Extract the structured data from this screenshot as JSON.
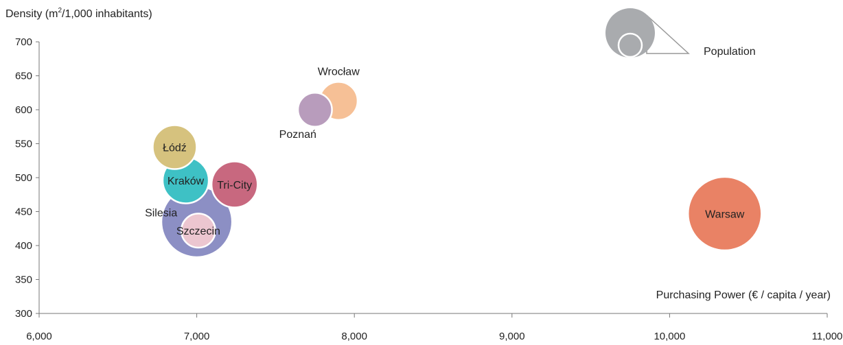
{
  "chart_data": {
    "type": "scatter",
    "subtype": "bubble",
    "xlabel": "Purchasing Power (€ / capita / year)",
    "ylabel_parts": {
      "pre": "Density (m",
      "sup": "2",
      "post": "/1,000 inhabitants)"
    },
    "xlim": [
      6000,
      11000
    ],
    "ylim": [
      300,
      700
    ],
    "x_ticks": [
      6000,
      7000,
      8000,
      9000,
      10000,
      11000
    ],
    "x_tick_labels": [
      "6,000",
      "7,000",
      "8,000",
      "9,000",
      "10,000",
      "11,000"
    ],
    "y_ticks": [
      300,
      350,
      400,
      450,
      500,
      550,
      600,
      650,
      700
    ],
    "y_tick_labels": [
      "300",
      "350",
      "400",
      "450",
      "500",
      "550",
      "600",
      "650",
      "700"
    ],
    "grid": false,
    "size_legend": {
      "label": "Population",
      "position": "top-right"
    },
    "points": [
      {
        "name": "Silesia",
        "x": 7000,
        "y": 435,
        "size": 2.6,
        "color": "#8c8fc4",
        "label_side": "left"
      },
      {
        "name": "Łódź",
        "x": 6860,
        "y": 545,
        "size": 1.0,
        "color": "#d6c27e",
        "label_side": "center"
      },
      {
        "name": "Tri-City",
        "x": 7240,
        "y": 490,
        "size": 1.1,
        "color": "#c8687f",
        "label_side": "center"
      },
      {
        "name": "Kraków",
        "x": 6930,
        "y": 496,
        "size": 1.1,
        "color": "#3ec1c5",
        "label_side": "center"
      },
      {
        "name": "Szczecin",
        "x": 7010,
        "y": 422,
        "size": 0.6,
        "color": "#ecc6d0",
        "label_side": "center"
      },
      {
        "name": "Wrocław",
        "x": 7900,
        "y": 613,
        "size": 0.75,
        "color": "#f6c096",
        "label_side": "above"
      },
      {
        "name": "Poznań",
        "x": 7750,
        "y": 600,
        "size": 0.6,
        "color": "#b89cbc",
        "label_side": "below"
      },
      {
        "name": "Warsaw",
        "x": 10350,
        "y": 447,
        "size": 2.8,
        "color": "#e98265",
        "label_side": "center"
      }
    ]
  }
}
